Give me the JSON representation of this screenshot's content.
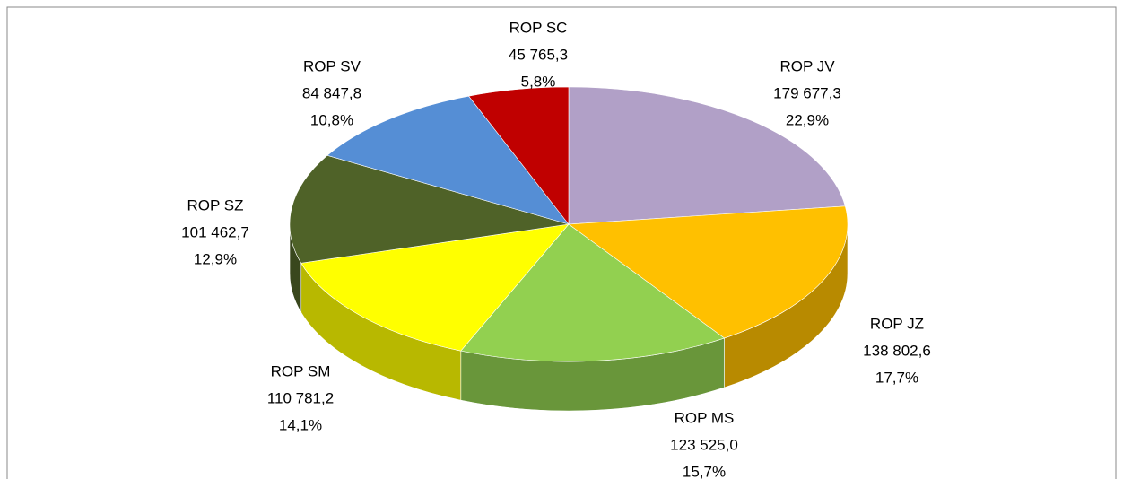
{
  "chart_data": {
    "type": "pie3d",
    "categories": [
      "ROP JV",
      "ROP JZ",
      "ROP MS",
      "ROP SM",
      "ROP SZ",
      "ROP SV",
      "ROP SC"
    ],
    "values": [
      179677.3,
      138802.6,
      123525.0,
      110781.2,
      101462.7,
      84847.8,
      45765.3
    ],
    "value_labels": [
      "179 677,3",
      "138 802,6",
      "123 525,0",
      "110 781,2",
      "101 462,7",
      "84 847,8",
      "45 765,3"
    ],
    "percents": [
      22.9,
      17.7,
      15.7,
      14.1,
      12.9,
      10.8,
      5.8
    ],
    "percent_labels": [
      "22,9%",
      "17,7%",
      "15,7%",
      "14,1%",
      "12,9%",
      "10,8%",
      "5,8%"
    ],
    "colors": [
      "#b1a0c7",
      "#ffc000",
      "#92d050",
      "#ffff00",
      "#4f6228",
      "#558ed5",
      "#c00000"
    ]
  }
}
